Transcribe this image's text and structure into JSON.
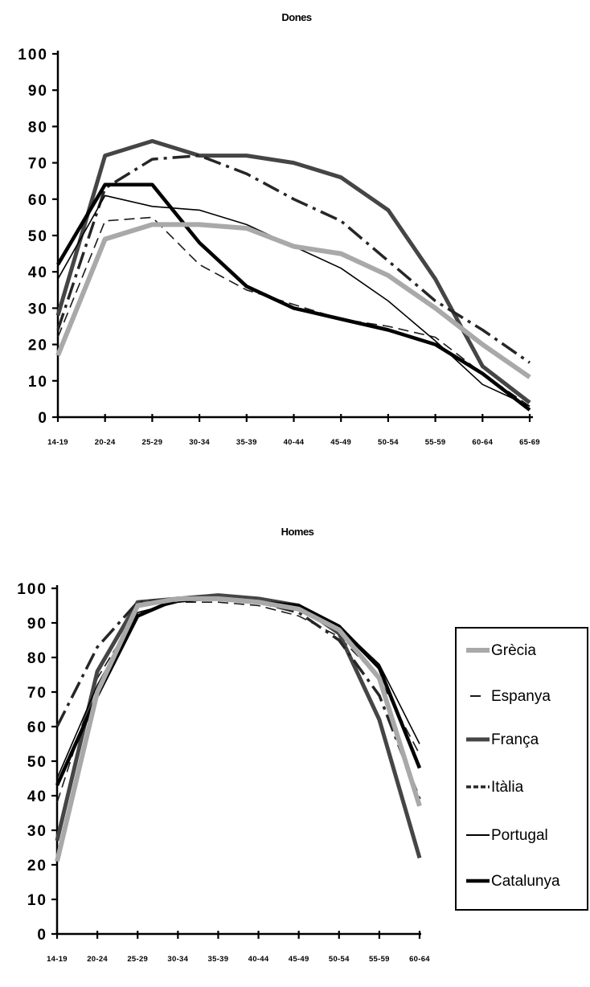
{
  "chart_data": [
    {
      "type": "line",
      "title": "Dones",
      "xlabel": "",
      "ylabel": "",
      "categories": [
        "14-19",
        "20-24",
        "25-29",
        "30-34",
        "35-39",
        "40-44",
        "45-49",
        "50-54",
        "55-59",
        "60-64",
        "65-69"
      ],
      "ylim": [
        0,
        100
      ],
      "yticks": [
        "0",
        "10",
        "20",
        "30",
        "40",
        "50",
        "60",
        "70",
        "80",
        "90",
        "100"
      ],
      "grid": false,
      "series": [
        {
          "name": "Grècia",
          "values": [
            17,
            49,
            53,
            53,
            52,
            47,
            45,
            39,
            30,
            20,
            11
          ]
        },
        {
          "name": "Espanya",
          "values": [
            22,
            54,
            55,
            42,
            35,
            31,
            27,
            25,
            22,
            12,
            3
          ]
        },
        {
          "name": "França",
          "values": [
            28,
            72,
            76,
            72,
            72,
            70,
            66,
            57,
            38,
            14,
            4
          ]
        },
        {
          "name": "Itàlia",
          "values": [
            24,
            63,
            71,
            72,
            67,
            60,
            54,
            43,
            32,
            24,
            15
          ]
        },
        {
          "name": "Portugal",
          "values": [
            38,
            61,
            58,
            57,
            53,
            47,
            41,
            32,
            21,
            9,
            3
          ]
        },
        {
          "name": "Catalunya",
          "values": [
            42,
            64,
            64,
            48,
            36,
            30,
            27,
            24,
            20,
            12,
            2
          ]
        }
      ]
    },
    {
      "type": "line",
      "title": "Homes",
      "xlabel": "",
      "ylabel": "",
      "categories": [
        "14-19",
        "20-24",
        "25-29",
        "30-34",
        "35-39",
        "40-44",
        "45-49",
        "50-54",
        "55-59",
        "60-64"
      ],
      "ylim": [
        0,
        100
      ],
      "yticks": [
        "0",
        "10",
        "20",
        "30",
        "40",
        "50",
        "60",
        "70",
        "80",
        "90",
        "100"
      ],
      "grid": false,
      "legend_position": "right",
      "series": [
        {
          "name": "Grècia",
          "values": [
            21,
            70,
            95,
            97,
            97,
            96,
            94,
            88,
            74,
            37
          ]
        },
        {
          "name": "Espanya",
          "values": [
            38,
            74,
            93,
            96,
            96,
            95,
            92,
            86,
            74,
            52
          ]
        },
        {
          "name": "França",
          "values": [
            27,
            76,
            96,
            97,
            98,
            97,
            95,
            87,
            62,
            22
          ]
        },
        {
          "name": "Itàlia",
          "values": [
            60,
            83,
            96,
            97,
            97,
            96,
            93,
            85,
            69,
            39
          ]
        },
        {
          "name": "Portugal",
          "values": [
            45,
            72,
            93,
            96,
            97,
            96,
            95,
            89,
            78,
            55
          ]
        },
        {
          "name": "Catalunya",
          "values": [
            43,
            69,
            92,
            97,
            97,
            96,
            95,
            89,
            77,
            48
          ]
        }
      ]
    }
  ],
  "legend": {
    "items": [
      "Grècia",
      "Espanya",
      "França",
      "Itàlia",
      "Portugal",
      "Catalunya"
    ]
  }
}
